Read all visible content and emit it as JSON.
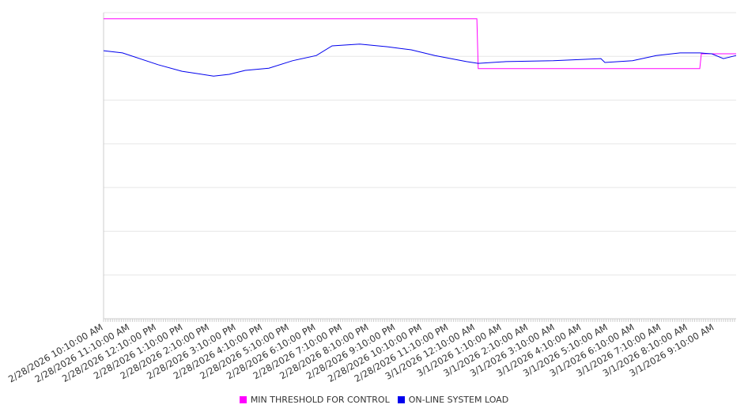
{
  "chart_data": {
    "type": "line",
    "title": "",
    "xlabel": "",
    "ylabel": "",
    "x_unit": "hours since 2/28/2026 10:10:00 AM",
    "xlim": [
      0,
      23.81
    ],
    "ylim": [
      0,
      7
    ],
    "grid": true,
    "legend_position": "bottom-center",
    "x_tick_labels": [
      "2/28/2026 10:10:00 AM",
      "2/28/2026 11:10:00 AM",
      "2/28/2026 12:10:00 PM",
      "2/28/2026 1:10:00 PM",
      "2/28/2026 2:10:00 PM",
      "2/28/2026 3:10:00 PM",
      "2/28/2026 4:10:00 PM",
      "2/28/2026 5:10:00 PM",
      "2/28/2026 6:10:00 PM",
      "2/28/2026 7:10:00 PM",
      "2/28/2026 8:10:00 PM",
      "2/28/2026 9:10:00 PM",
      "2/28/2026 10:10:00 PM",
      "2/28/2026 11:10:00 PM",
      "3/1/2026 12:10:00 AM",
      "3/1/2026 1:10:00 AM",
      "3/1/2026 2:10:00 AM",
      "3/1/2026 3:10:00 AM",
      "3/1/2026 4:10:00 AM",
      "3/1/2026 5:10:00 AM",
      "3/1/2026 6:10:00 AM",
      "3/1/2026 7:10:00 AM",
      "3/1/2026 8:10:00 AM",
      "3/1/2026 9:10:00 AM"
    ],
    "series": [
      {
        "name": "MIN THRESHOLD FOR CONTROL",
        "color": "#ff00ff",
        "points": [
          [
            0,
            6.86
          ],
          [
            14.05,
            6.86
          ],
          [
            14.1,
            5.72
          ],
          [
            22.44,
            5.72
          ],
          [
            22.5,
            6.06
          ],
          [
            23.81,
            6.06
          ]
        ]
      },
      {
        "name": "ON-LINE SYSTEM LOAD",
        "color": "#0000ee",
        "points": [
          [
            0,
            6.13
          ],
          [
            0.71,
            6.08
          ],
          [
            2.05,
            5.81
          ],
          [
            2.95,
            5.66
          ],
          [
            4.14,
            5.55
          ],
          [
            4.73,
            5.59
          ],
          [
            5.33,
            5.68
          ],
          [
            6.22,
            5.73
          ],
          [
            7.11,
            5.9
          ],
          [
            8.01,
            6.02
          ],
          [
            8.6,
            6.24
          ],
          [
            9.64,
            6.28
          ],
          [
            10.68,
            6.22
          ],
          [
            11.58,
            6.15
          ],
          [
            12.47,
            6.02
          ],
          [
            13.66,
            5.88
          ],
          [
            14.1,
            5.84
          ],
          [
            15.15,
            5.88
          ],
          [
            16.93,
            5.9
          ],
          [
            18.72,
            5.95
          ],
          [
            18.87,
            5.86
          ],
          [
            19.91,
            5.9
          ],
          [
            20.8,
            6.02
          ],
          [
            21.7,
            6.08
          ],
          [
            22.44,
            6.08
          ],
          [
            22.89,
            6.06
          ],
          [
            23.33,
            5.95
          ],
          [
            23.81,
            6.02
          ]
        ]
      }
    ]
  }
}
